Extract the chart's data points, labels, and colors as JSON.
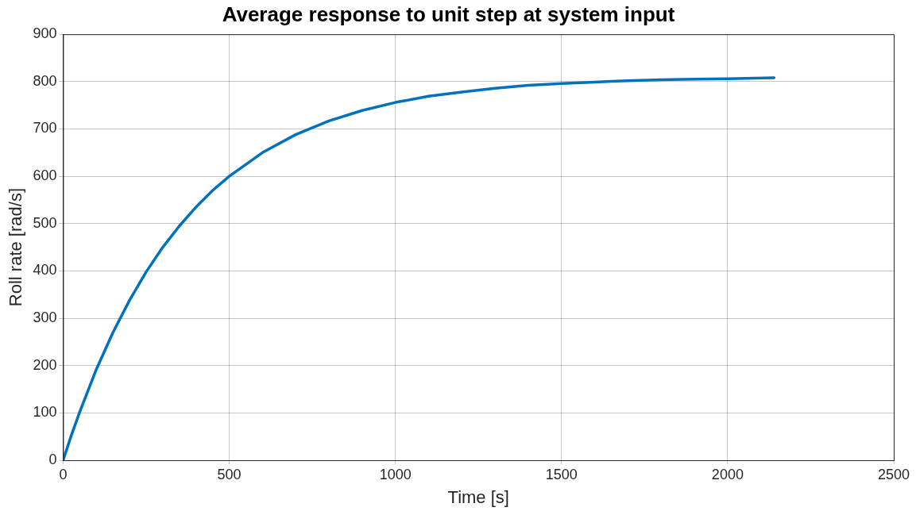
{
  "chart_data": {
    "type": "line",
    "title": "Average response to unit step at system input",
    "xlabel": "Time [s]",
    "ylabel": "Roll rate [rad/s]",
    "x": [
      0,
      25,
      50,
      100,
      150,
      200,
      250,
      300,
      350,
      400,
      450,
      500,
      600,
      700,
      800,
      900,
      1000,
      1100,
      1200,
      1300,
      1400,
      1500,
      1600,
      1700,
      1800,
      1900,
      2000,
      2140
    ],
    "series": [
      {
        "color": "#0072bd",
        "values": [
          0,
          53,
          102,
          192,
          270,
          338,
          398,
          450,
          495,
          535,
          570,
          600,
          650,
          688,
          717,
          739,
          756,
          769,
          778,
          786,
          792,
          796,
          799,
          802,
          804,
          805,
          806,
          808
        ]
      }
    ],
    "xlim": [
      0,
      2500
    ],
    "xticks": [
      0,
      500,
      1000,
      1500,
      2000,
      2500
    ],
    "ylim": [
      0,
      900
    ],
    "yticks": [
      0,
      100,
      200,
      300,
      400,
      500,
      600,
      700,
      800,
      900
    ],
    "grid": true,
    "legend": false,
    "marker": "none",
    "line_style": "solid"
  }
}
